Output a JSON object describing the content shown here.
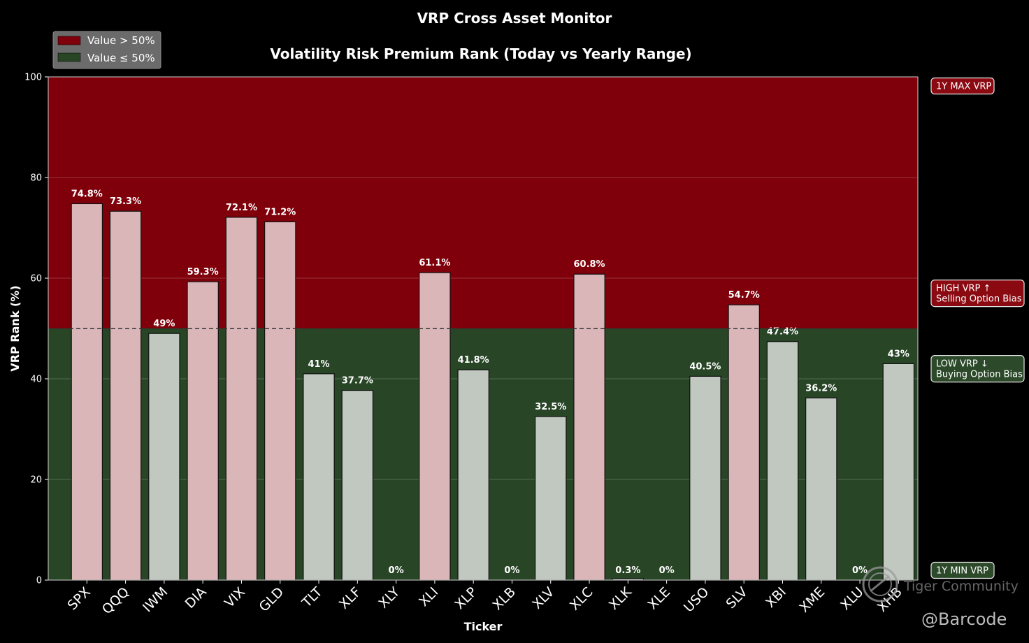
{
  "chart_data": {
    "type": "bar",
    "title": "VRP Cross Asset Monitor",
    "subtitle": "Volatility Risk Premium Rank (Today vs Yearly Range)",
    "xlabel": "Ticker",
    "ylabel": "VRP Rank (%)",
    "ylim": [
      0,
      100
    ],
    "yticks": [
      0,
      20,
      40,
      60,
      80,
      100
    ],
    "threshold": 50,
    "grid": true,
    "legend_position": "top-left",
    "legend": [
      {
        "label": "Value > 50%",
        "color": "#7f000a"
      },
      {
        "label": "Value ≤ 50%",
        "color": "#284526"
      }
    ],
    "categories": [
      "SPX",
      "QQQ",
      "IWM",
      "DIA",
      "VIX",
      "GLD",
      "TLT",
      "XLF",
      "XLY",
      "XLI",
      "XLP",
      "XLB",
      "XLV",
      "XLC",
      "XLK",
      "XLE",
      "USO",
      "SLV",
      "XBI",
      "XME",
      "XLU",
      "XHB"
    ],
    "values": [
      74.8,
      73.3,
      49,
      59.3,
      72.1,
      71.2,
      41,
      37.7,
      0,
      61.1,
      41.8,
      0,
      32.5,
      60.8,
      0.3,
      0,
      40.5,
      54.7,
      47.4,
      36.2,
      0,
      43
    ],
    "value_labels": [
      "74.8%",
      "73.3%",
      "49%",
      "59.3%",
      "72.1%",
      "71.2%",
      "41%",
      "37.7%",
      "0%",
      "61.1%",
      "41.8%",
      "0%",
      "32.5%",
      "60.8%",
      "0.3%",
      "0%",
      "40.5%",
      "54.7%",
      "47.4%",
      "36.2%",
      "0%",
      "43%"
    ],
    "annotations": [
      {
        "lines": [
          "1Y MAX VRP"
        ],
        "at": 100,
        "zone": "high"
      },
      {
        "lines": [
          "HIGH VRP ↑",
          "Selling Option Bias"
        ],
        "at": 57,
        "zone": "high"
      },
      {
        "lines": [
          "LOW VRP ↓",
          "Buying Option Bias"
        ],
        "at": 42,
        "zone": "low"
      },
      {
        "lines": [
          "1Y MIN VRP"
        ],
        "at": 0,
        "zone": "low"
      }
    ],
    "colors": {
      "high_zone": "#7f000a",
      "low_zone": "#284526",
      "bar_high": "#dbb6b9",
      "bar_low": "#c0c8c0",
      "annot_high": "#8b0a12",
      "annot_low": "#2c4a2a"
    }
  },
  "watermark": {
    "brand": "Tiger Community",
    "handle": "@Barcode",
    "icon": "tiger-logo-icon"
  }
}
